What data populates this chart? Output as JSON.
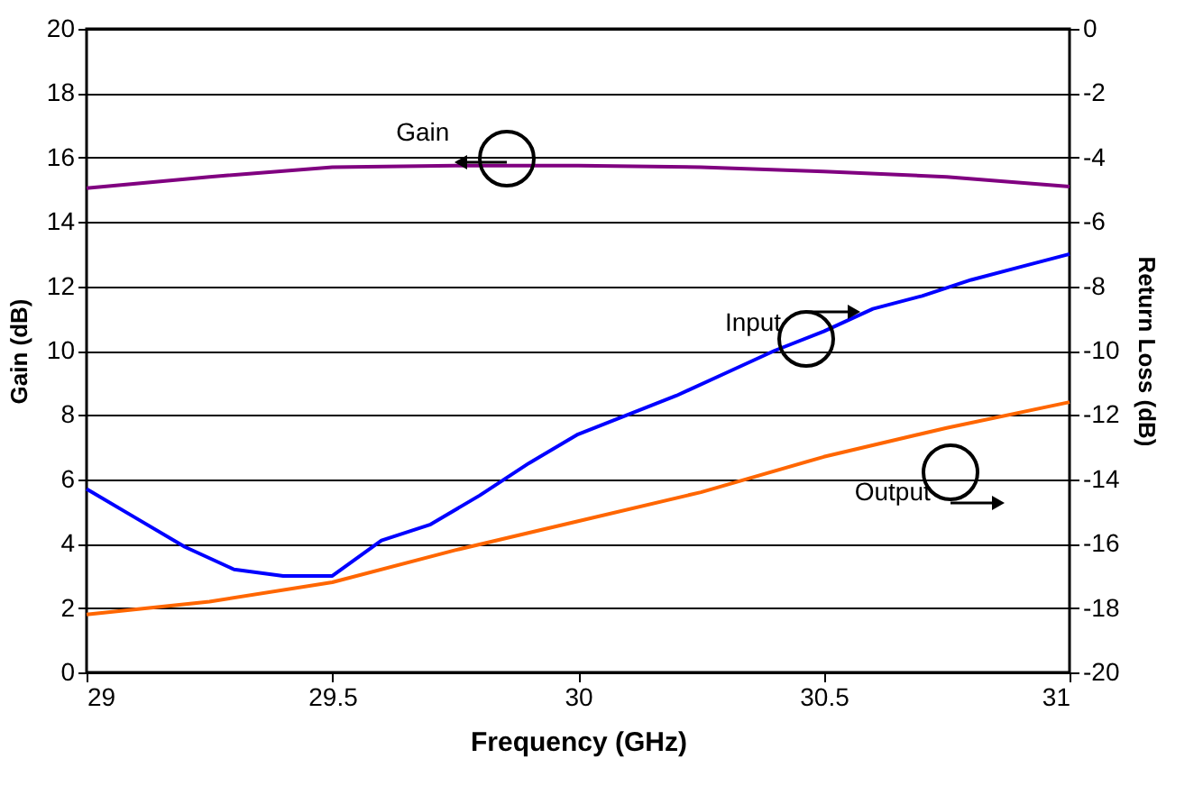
{
  "chart_data": {
    "type": "line",
    "xlabel": "Frequency (GHz)",
    "ylabel": "Gain (dB)",
    "y2label": "Return Loss (dB)",
    "xlim": [
      29,
      31
    ],
    "xticks": [
      29,
      29.5,
      30,
      30.5,
      31
    ],
    "ylim": [
      0,
      20
    ],
    "yticks": [
      0,
      2,
      4,
      6,
      8,
      10,
      12,
      14,
      16,
      18,
      20
    ],
    "y2lim": [
      -20,
      0
    ],
    "y2ticks": [
      -20,
      -18,
      -16,
      -14,
      -12,
      -10,
      -8,
      -6,
      -4,
      -2,
      0
    ],
    "grid": "y",
    "marker": "none",
    "line_style": "solid",
    "series": [
      {
        "name": "Gain",
        "color": "#800080",
        "x": [
          29,
          29.25,
          29.5,
          29.75,
          30,
          30.25,
          30.5,
          30.75,
          31
        ],
        "values": [
          15.05,
          15.4,
          15.7,
          15.75,
          15.75,
          15.7,
          15.57,
          15.4,
          15.1
        ]
      },
      {
        "name": "Input",
        "color": "#0000ff",
        "axis": "y2",
        "x": [
          29,
          29.1,
          29.2,
          29.3,
          29.4,
          29.5,
          29.6,
          29.7,
          29.8,
          29.9,
          30,
          30.1,
          30.2,
          30.3,
          30.4,
          30.5,
          30.6,
          30.7,
          30.8,
          30.9,
          31
        ],
        "values": [
          -14.3,
          -15.2,
          -16.1,
          -16.8,
          -17,
          -17,
          -15.9,
          -15.4,
          -14.5,
          -13.5,
          -12.6,
          -12,
          -11.4,
          -10.7,
          -10,
          -9.4,
          -8.7,
          -8.3,
          -7.8,
          -7.4,
          -7
        ]
      },
      {
        "name": "Output",
        "color": "#ff6600",
        "axis": "y2",
        "x": [
          29,
          29.25,
          29.5,
          29.75,
          30,
          30.25,
          30.5,
          30.75,
          31
        ],
        "values": [
          -18.2,
          -17.8,
          -17.2,
          -16.2,
          -15.3,
          -14.4,
          -13.3,
          -12.4,
          -11.6
        ]
      }
    ]
  }
}
